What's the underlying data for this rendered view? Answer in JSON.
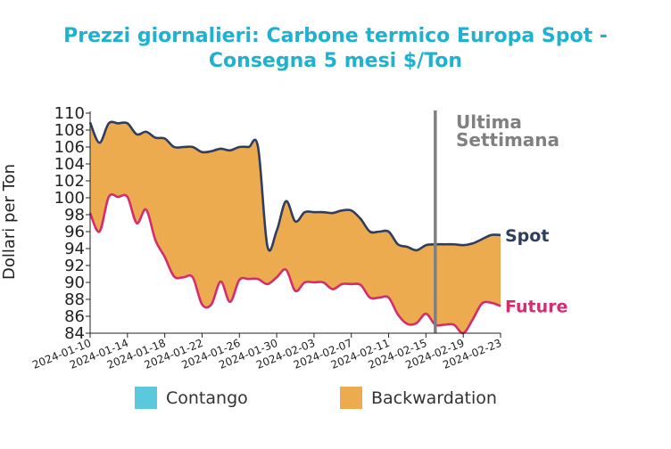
{
  "chart_data": {
    "type": "area",
    "title_line1": "Prezzi giornalieri: Carbone termico Europa Spot -",
    "title_line2": "Consegna 5 mesi $/Ton",
    "ylabel": "Dollari per Ton",
    "xlabel": "",
    "x_start": "2024-01-10",
    "x_end": "2024-02-23",
    "ylim": [
      84,
      110
    ],
    "yticks": [
      84,
      86,
      88,
      90,
      92,
      94,
      96,
      98,
      100,
      102,
      104,
      106,
      108,
      110
    ],
    "xticks": [
      "2024-01-10",
      "2024-01-14",
      "2024-01-18",
      "2024-01-22",
      "2024-01-26",
      "2024-01-30",
      "2024-02-03",
      "2024-02-07",
      "2024-02-11",
      "2024-02-15",
      "2024-02-19",
      "2024-02-23"
    ],
    "annotation_line1": "Ultima",
    "annotation_line2": "Settimana",
    "vline_date": "2024-02-16",
    "series": [
      {
        "name": "Spot",
        "color": "#2f3e5f",
        "points": [
          [
            "2024-01-10",
            108.9
          ],
          [
            "2024-01-11",
            106.5
          ],
          [
            "2024-01-12",
            108.8
          ],
          [
            "2024-01-13",
            108.8
          ],
          [
            "2024-01-14",
            108.8
          ],
          [
            "2024-01-15",
            107.5
          ],
          [
            "2024-01-16",
            107.8
          ],
          [
            "2024-01-17",
            107.1
          ],
          [
            "2024-01-18",
            107.0
          ],
          [
            "2024-01-19",
            106.0
          ],
          [
            "2024-01-20",
            106.0
          ],
          [
            "2024-01-21",
            106.0
          ],
          [
            "2024-01-22",
            105.4
          ],
          [
            "2024-01-23",
            105.5
          ],
          [
            "2024-01-24",
            105.8
          ],
          [
            "2024-01-25",
            105.6
          ],
          [
            "2024-01-26",
            106.0
          ],
          [
            "2024-01-27",
            106.0
          ],
          [
            "2024-01-28",
            106.0
          ],
          [
            "2024-01-29",
            94.3
          ],
          [
            "2024-01-30",
            96.1
          ],
          [
            "2024-01-31",
            99.6
          ],
          [
            "2024-02-01",
            97.2
          ],
          [
            "2024-02-02",
            98.3
          ],
          [
            "2024-02-03",
            98.3
          ],
          [
            "2024-02-04",
            98.3
          ],
          [
            "2024-02-05",
            98.2
          ],
          [
            "2024-02-06",
            98.5
          ],
          [
            "2024-02-07",
            98.5
          ],
          [
            "2024-02-08",
            97.5
          ],
          [
            "2024-02-09",
            96.0
          ],
          [
            "2024-02-10",
            96.0
          ],
          [
            "2024-02-11",
            96.0
          ],
          [
            "2024-02-12",
            94.5
          ],
          [
            "2024-02-13",
            94.2
          ],
          [
            "2024-02-14",
            93.8
          ],
          [
            "2024-02-15",
            94.4
          ],
          [
            "2024-02-16",
            94.5
          ],
          [
            "2024-02-17",
            94.5
          ],
          [
            "2024-02-18",
            94.5
          ],
          [
            "2024-02-19",
            94.4
          ],
          [
            "2024-02-20",
            94.6
          ],
          [
            "2024-02-21",
            95.1
          ],
          [
            "2024-02-22",
            95.6
          ],
          [
            "2024-02-23",
            95.6
          ]
        ]
      },
      {
        "name": "Future",
        "color": "#d52b6f",
        "points": [
          [
            "2024-01-10",
            98.2
          ],
          [
            "2024-01-11",
            96.0
          ],
          [
            "2024-01-12",
            100.1
          ],
          [
            "2024-01-13",
            100.1
          ],
          [
            "2024-01-14",
            100.1
          ],
          [
            "2024-01-15",
            97.0
          ],
          [
            "2024-01-16",
            98.6
          ],
          [
            "2024-01-17",
            95.0
          ],
          [
            "2024-01-18",
            93.0
          ],
          [
            "2024-01-19",
            90.7
          ],
          [
            "2024-01-20",
            90.6
          ],
          [
            "2024-01-21",
            90.6
          ],
          [
            "2024-01-22",
            87.4
          ],
          [
            "2024-01-23",
            87.4
          ],
          [
            "2024-01-24",
            90.1
          ],
          [
            "2024-01-25",
            87.7
          ],
          [
            "2024-01-26",
            90.3
          ],
          [
            "2024-01-27",
            90.4
          ],
          [
            "2024-01-28",
            90.4
          ],
          [
            "2024-01-29",
            89.8
          ],
          [
            "2024-01-30",
            90.6
          ],
          [
            "2024-01-31",
            91.5
          ],
          [
            "2024-02-01",
            89.0
          ],
          [
            "2024-02-02",
            90.0
          ],
          [
            "2024-02-03",
            90.0
          ],
          [
            "2024-02-04",
            90.0
          ],
          [
            "2024-02-05",
            89.2
          ],
          [
            "2024-02-06",
            89.8
          ],
          [
            "2024-02-07",
            89.8
          ],
          [
            "2024-02-08",
            89.7
          ],
          [
            "2024-02-09",
            88.2
          ],
          [
            "2024-02-10",
            88.2
          ],
          [
            "2024-02-11",
            88.2
          ],
          [
            "2024-02-12",
            86.2
          ],
          [
            "2024-02-13",
            85.1
          ],
          [
            "2024-02-14",
            85.2
          ],
          [
            "2024-02-15",
            86.3
          ],
          [
            "2024-02-16",
            85.0
          ],
          [
            "2024-02-17",
            85.0
          ],
          [
            "2024-02-18",
            85.0
          ],
          [
            "2024-02-19",
            84.0
          ],
          [
            "2024-02-20",
            85.6
          ],
          [
            "2024-02-21",
            87.5
          ],
          [
            "2024-02-22",
            87.6
          ],
          [
            "2024-02-23",
            87.2
          ]
        ]
      }
    ],
    "fill_colors": {
      "contango": "#5bc8dd",
      "backwardation": "#ebab4e"
    },
    "legend": {
      "placement": "bottom",
      "items": [
        {
          "label": "Contango",
          "color": "#5bc8dd"
        },
        {
          "label": "Backwardation",
          "color": "#ebab4e"
        }
      ]
    },
    "grid": false
  }
}
